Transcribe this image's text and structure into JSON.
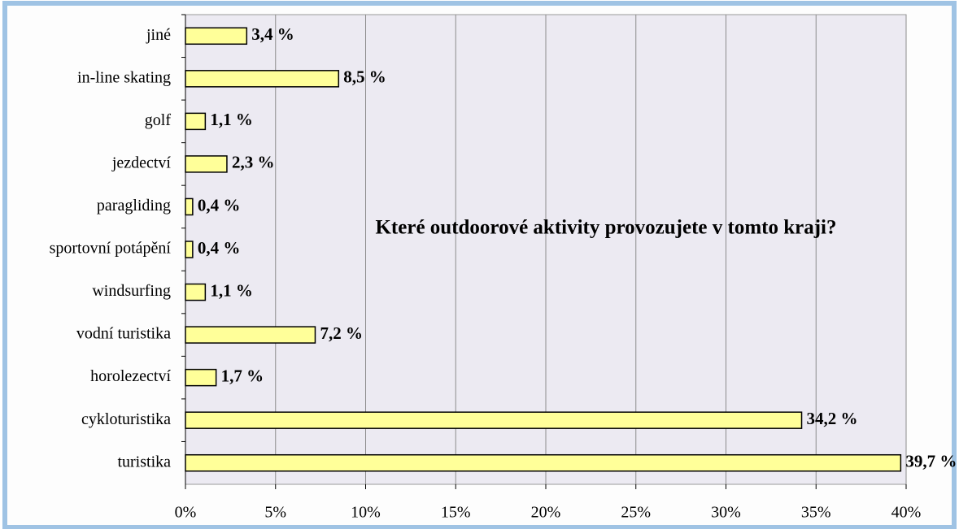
{
  "chart_data": {
    "type": "bar",
    "orientation": "horizontal",
    "title": "Které outdoorové aktivity provozujete v tomto kraji?",
    "categories": [
      "jiné",
      "in-line skating",
      "golf",
      "jezdectví",
      "paragliding",
      "sportovní potápění",
      "windsurfing",
      "vodní turistika",
      "horolezectví",
      "cykloturistika",
      "turistika"
    ],
    "values": [
      3.4,
      8.5,
      1.1,
      2.3,
      0.4,
      0.4,
      1.1,
      7.2,
      1.7,
      34.2,
      39.7
    ],
    "value_labels": [
      "3,4 %",
      "8,5 %",
      "1,1 %",
      "2,3 %",
      "0,4 %",
      "0,4 %",
      "1,1 %",
      "7,2 %",
      "1,7 %",
      "34,2 %",
      "39,7 %"
    ],
    "color": "#ffff99",
    "xlim": [
      0,
      40
    ],
    "xticks": [
      {
        "value": 0,
        "label": "0%"
      },
      {
        "value": 5,
        "label": "5%"
      },
      {
        "value": 10,
        "label": "10%"
      },
      {
        "value": 15,
        "label": "15%"
      },
      {
        "value": 20,
        "label": "20%"
      },
      {
        "value": 25,
        "label": "25%"
      },
      {
        "value": 30,
        "label": "30%"
      },
      {
        "value": 35,
        "label": "35%"
      },
      {
        "value": 40,
        "label": "40%"
      }
    ],
    "grid": true
  }
}
